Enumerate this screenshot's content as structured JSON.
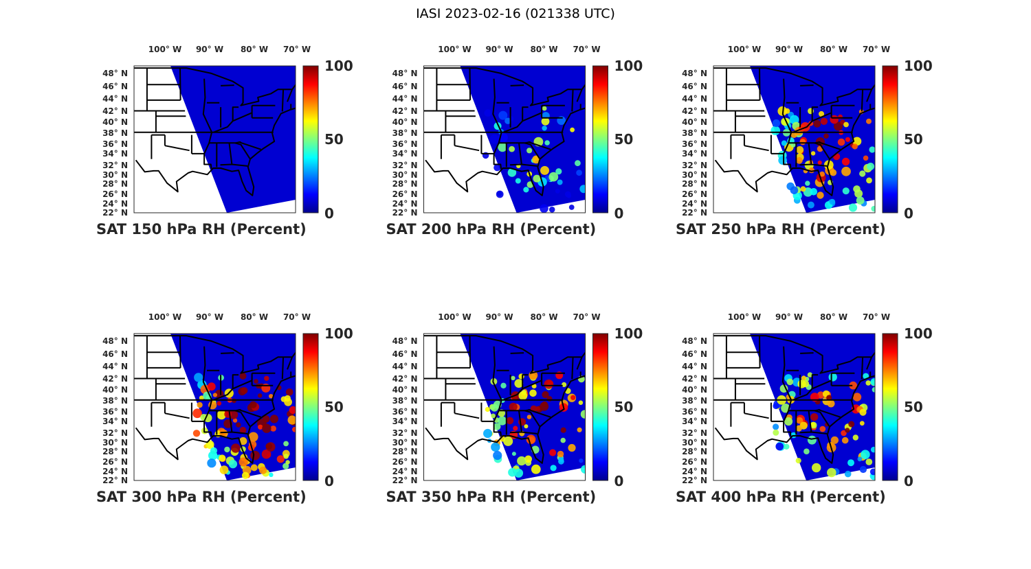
{
  "figure_title": "IASI 2023-02-16 (021338 UTC)",
  "lon_ticks": [
    "100° W",
    "90° W",
    "80° W",
    "70° W"
  ],
  "lat_ticks": [
    "48° N",
    "46° N",
    "44° N",
    "42° N",
    "40° N",
    "38° N",
    "36° N",
    "34° N",
    "32° N",
    "30° N",
    "28° N",
    "26° N",
    "24° N",
    "22° N"
  ],
  "colorbar": {
    "min": 0,
    "max": 100,
    "ticks": [
      "100",
      "50",
      "0"
    ],
    "colormap": "jet"
  },
  "panels": [
    {
      "title": "SAT 150 hPa RH (Percent)",
      "level_hpa": 150,
      "moisture": 0.0
    },
    {
      "title": "SAT 200 hPa RH (Percent)",
      "level_hpa": 200,
      "moisture": 0.35
    },
    {
      "title": "SAT 250 hPa RH (Percent)",
      "level_hpa": 250,
      "moisture": 0.6
    },
    {
      "title": "SAT 300 hPa RH (Percent)",
      "level_hpa": 300,
      "moisture": 0.7
    },
    {
      "title": "SAT 350 hPa RH (Percent)",
      "level_hpa": 350,
      "moisture": 0.6
    },
    {
      "title": "SAT 400 hPa RH (Percent)",
      "level_hpa": 400,
      "moisture": 0.55
    }
  ]
}
